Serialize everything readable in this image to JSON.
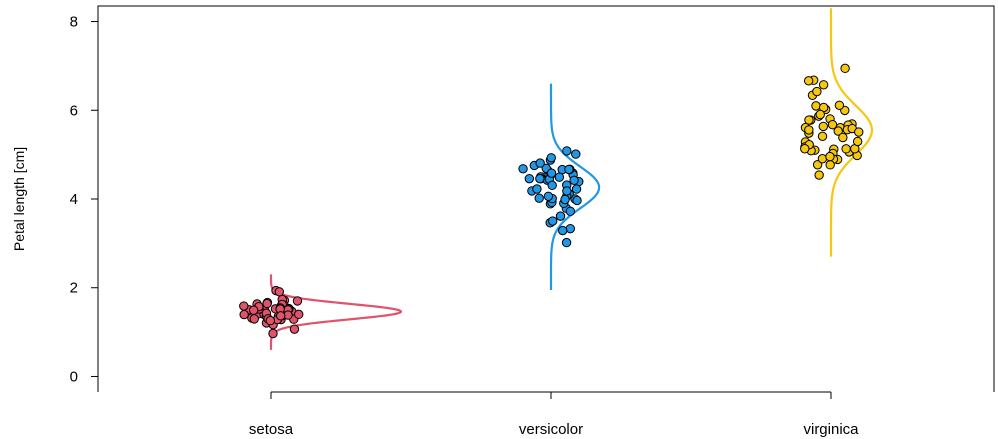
{
  "chart_data": {
    "type": "scatter",
    "title": "",
    "xlabel": "",
    "ylabel": "Petal length [cm]",
    "categories": [
      "setosa",
      "versicolor",
      "virginica"
    ],
    "yticks": [
      0,
      2,
      4,
      6,
      8
    ],
    "ylim": [
      -0.35,
      8.35
    ],
    "grid": false,
    "legend": "none",
    "series": [
      {
        "color": "#df536b",
        "values": [
          1.4,
          1.4,
          1.3,
          1.5,
          1.4,
          1.7,
          1.4,
          1.5,
          1.4,
          1.5,
          1.5,
          1.6,
          1.4,
          1.1,
          1.2,
          1.5,
          1.3,
          1.4,
          1.7,
          1.5,
          1.7,
          1.5,
          1.0,
          1.7,
          1.9,
          1.6,
          1.6,
          1.5,
          1.4,
          1.6,
          1.6,
          1.5,
          1.5,
          1.4,
          1.5,
          1.2,
          1.3,
          1.4,
          1.3,
          1.5,
          1.3,
          1.3,
          1.3,
          1.6,
          1.9,
          1.4,
          1.6,
          1.4,
          1.5,
          1.4
        ],
        "density": {
          "mean": 1.462,
          "sd": 0.174,
          "from": 0.6,
          "to": 2.3
        }
      },
      {
        "color": "#2297e6",
        "values": [
          4.7,
          4.5,
          4.9,
          4.0,
          4.6,
          4.5,
          4.7,
          3.3,
          4.6,
          3.9,
          3.5,
          4.2,
          4.0,
          4.7,
          3.6,
          4.4,
          4.5,
          4.1,
          4.5,
          3.9,
          4.8,
          4.0,
          4.9,
          4.7,
          4.3,
          4.4,
          4.8,
          5.0,
          4.5,
          3.5,
          3.8,
          3.7,
          3.9,
          5.1,
          4.5,
          4.5,
          4.7,
          4.4,
          4.1,
          4.0,
          4.4,
          4.6,
          4.0,
          3.3,
          4.2,
          4.2,
          4.2,
          4.3,
          3.0,
          4.1
        ],
        "density": {
          "mean": 4.26,
          "sd": 0.47,
          "from": 1.95,
          "to": 6.6
        }
      },
      {
        "color": "#f5c710",
        "values": [
          6.0,
          5.1,
          5.9,
          5.6,
          5.8,
          6.6,
          4.5,
          6.3,
          5.8,
          6.1,
          5.1,
          5.3,
          5.5,
          5.0,
          5.1,
          5.3,
          5.5,
          6.7,
          6.9,
          5.0,
          5.7,
          4.9,
          6.7,
          4.9,
          5.7,
          6.0,
          4.8,
          4.9,
          5.6,
          5.8,
          6.1,
          6.4,
          5.6,
          5.1,
          5.6,
          6.1,
          5.6,
          5.5,
          4.8,
          5.4,
          5.6,
          5.1,
          5.1,
          5.9,
          5.7,
          5.2,
          5.0,
          5.2,
          5.4,
          5.1
        ],
        "density": {
          "mean": 5.552,
          "sd": 0.552,
          "from": 2.7,
          "to": 8.3
        }
      }
    ]
  }
}
